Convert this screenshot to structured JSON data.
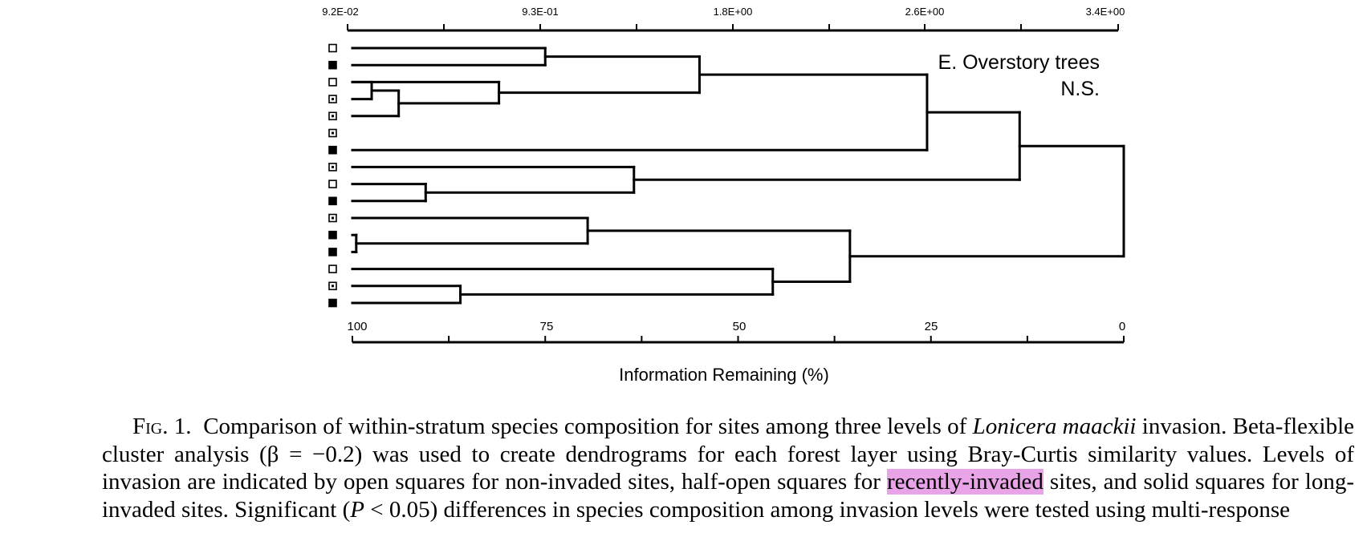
{
  "figure": {
    "panel_title": "E. Overstory trees",
    "significance": "N.S.",
    "top_axis_ticks": [
      "9.2E-02",
      "9.3E-01",
      "1.8E+00",
      "2.6E+00",
      "3.4E+00"
    ],
    "bottom_axis_ticks": [
      "100",
      "75",
      "50",
      "25",
      "0"
    ],
    "xlabel": "Information Remaining (%)",
    "site_markers": [
      "open",
      "solid",
      "open",
      "half",
      "half",
      "half",
      "solid",
      "half",
      "open",
      "solid",
      "half",
      "solid",
      "solid",
      "open",
      "half",
      "solid"
    ],
    "legend_semantics": {
      "open": "non-invaded",
      "half": "recently-invaded",
      "solid": "long-invaded"
    }
  },
  "chart_data": {
    "type": "dendrogram",
    "title": "E. Overstory trees",
    "subtitle": "N.S.",
    "xlabel": "Information Remaining (%)",
    "top_axis_ticks": [
      "9.2E-02",
      "9.3E-01",
      "1.8E+00",
      "2.6E+00",
      "3.4E+00"
    ],
    "x_ticks": [
      100,
      75,
      50,
      25,
      0
    ],
    "xlim": [
      100,
      0
    ],
    "leaves": [
      "open",
      "solid",
      "open",
      "half",
      "half",
      "half",
      "solid",
      "half",
      "open",
      "solid",
      "half",
      "solid",
      "solid",
      "open",
      "half",
      "solid"
    ],
    "merges": [
      {
        "id": "m1",
        "children": [
          3,
          4
        ],
        "value": 97.5
      },
      {
        "id": "m2",
        "children": [
          "m1",
          5
        ],
        "value": 94
      },
      {
        "id": "m3",
        "children": [
          12,
          13
        ],
        "value": 99.5
      },
      {
        "id": "m4",
        "children": [
          9,
          10
        ],
        "value": 90.5
      },
      {
        "id": "m5",
        "children": [
          15,
          16
        ],
        "value": 86
      },
      {
        "id": "m6",
        "children": [
          3,
          "m2"
        ],
        "value": 81
      },
      {
        "id": "m7",
        "children": [
          1,
          2
        ],
        "value": 75
      },
      {
        "id": "m8",
        "children": [
          11,
          "m3"
        ],
        "value": 69.5
      },
      {
        "id": "m9",
        "children": [
          8,
          "m4"
        ],
        "value": 63.5
      },
      {
        "id": "m10",
        "children": [
          "m7",
          "m6"
        ],
        "value": 55
      },
      {
        "id": "m11",
        "children": [
          14,
          "m5"
        ],
        "value": 45.5
      },
      {
        "id": "m12",
        "children": [
          "m8",
          "m11"
        ],
        "value": 35.5
      },
      {
        "id": "m13",
        "children": [
          "m10",
          7
        ],
        "value": 25.5
      },
      {
        "id": "m14",
        "children": [
          "m13",
          "m9"
        ],
        "value": 13.5
      },
      {
        "id": "m15",
        "children": [
          "m14",
          "m12"
        ],
        "value": 0
      }
    ]
  },
  "caption": {
    "fig_label": "Fig. 1.",
    "text_1": "Comparison of within-stratum species composition for sites among three levels of ",
    "species_italic": "Lonicera maackii",
    "text_2": " invasion. Beta-flexible cluster analysis (β = −0.2) was used to create dendrograms for each forest layer using Bray-Curtis similarity values. Levels of invasion are indicated by open squares for non-invaded sites, half-open squares for ",
    "highlighted": "recently-invaded",
    "text_3": " sites, and solid squares for long-invaded sites. Significant (",
    "p_italic": "P",
    "text_4": " < 0.05) differences in species composition among invasion levels were tested using multi-response"
  }
}
